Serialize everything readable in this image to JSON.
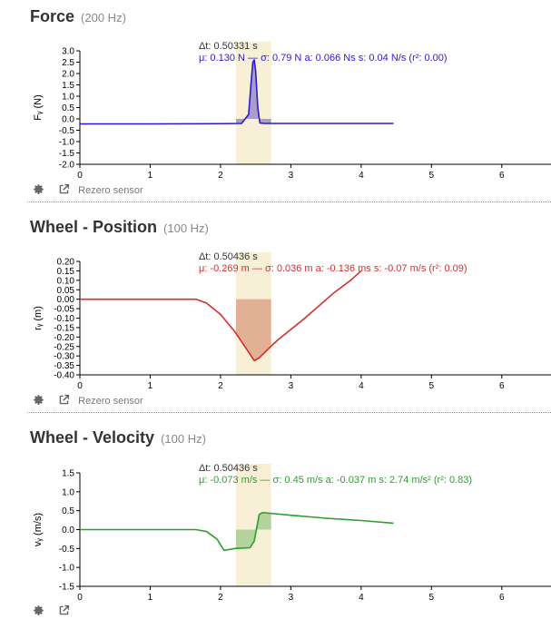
{
  "panels": [
    {
      "title": "Force",
      "rate": "(200 Hz)",
      "toolbar": {
        "settings_icon": "gear-icon",
        "popout_icon": "external-link-icon",
        "rezero_label": "Rezero sensor"
      },
      "selection": {
        "x_start": 2.22,
        "x_end": 2.72
      },
      "stats": {
        "dt": "Δt: 0.50331 s",
        "mean": "μ: 0.130 N",
        "sd": "σ: 0.79 N",
        "area": "a: 0.066 Ns",
        "slope": "s: 0.04 N/s",
        "r2": "(r²: 0.00)"
      },
      "colors": {
        "line": "#2b1bd0",
        "shade": "#9b8ec8",
        "stats": "#2b1bd0",
        "band": "#f7f0d6"
      },
      "chart_data": {
        "type": "line",
        "title": "Force",
        "xlabel": "",
        "ylabel": "Fᵧ (N)",
        "xlim": [
          0,
          6.7
        ],
        "ylim": [
          -2.0,
          3.0
        ],
        "xticks": [
          "0",
          "1",
          "2",
          "3",
          "4",
          "5",
          "6"
        ],
        "yticks": [
          "3.0",
          "2.5",
          "2.0",
          "1.5",
          "1.0",
          "0.5",
          "0.0",
          "-0.5",
          "-1.0",
          "-1.5",
          "-2.0"
        ],
        "x": [
          0,
          1,
          2,
          2.3,
          2.4,
          2.44,
          2.46,
          2.48,
          2.5,
          2.53,
          2.56,
          2.62,
          3,
          4,
          4.46
        ],
        "y": [
          -0.22,
          -0.22,
          -0.21,
          -0.2,
          0.2,
          1.8,
          2.5,
          2.6,
          2.1,
          0.5,
          -0.18,
          -0.2,
          -0.2,
          -0.2,
          -0.2
        ]
      }
    },
    {
      "title": "Wheel - Position",
      "rate": "(100 Hz)",
      "toolbar": {
        "settings_icon": "gear-icon",
        "popout_icon": "external-link-icon",
        "rezero_label": "Rezero sensor"
      },
      "selection": {
        "x_start": 2.22,
        "x_end": 2.72
      },
      "stats": {
        "dt": "Δt: 0.50436 s",
        "mean": "μ: -0.269 m",
        "sd": "σ: 0.036 m",
        "area": "a: -0.136 ms",
        "slope": "s: -0.07 m/s",
        "r2": "(r²: 0.09)"
      },
      "colors": {
        "line": "#d32f2f",
        "shade": "#dea68a",
        "stats": "#d32f2f",
        "band": "#f7f0d6"
      },
      "chart_data": {
        "type": "line",
        "title": "Wheel - Position",
        "xlabel": "",
        "ylabel": "rᵧ (m)",
        "xlim": [
          0,
          6.7
        ],
        "ylim": [
          -0.4,
          0.2
        ],
        "xticks": [
          "0",
          "1",
          "2",
          "3",
          "4",
          "5",
          "6"
        ],
        "yticks": [
          "0.20",
          "0.15",
          "0.10",
          "0.05",
          "0.00",
          "-0.05",
          "-0.10",
          "-0.15",
          "-0.20",
          "-0.25",
          "-0.30",
          "-0.35",
          "-0.40"
        ],
        "x": [
          0,
          1.65,
          1.8,
          2.0,
          2.2,
          2.4,
          2.48,
          2.55,
          2.8,
          3.2,
          3.6,
          3.85,
          4.0
        ],
        "y": [
          0,
          0,
          -0.02,
          -0.08,
          -0.17,
          -0.28,
          -0.325,
          -0.31,
          -0.22,
          -0.1,
          0.03,
          0.1,
          0.15
        ]
      }
    },
    {
      "title": "Wheel - Velocity",
      "rate": "(100 Hz)",
      "toolbar": {
        "settings_icon": "gear-icon",
        "popout_icon": "external-link-icon",
        "rezero_label": ""
      },
      "selection": {
        "x_start": 2.22,
        "x_end": 2.72
      },
      "stats": {
        "dt": "Δt: 0.50436 s",
        "mean": "μ: -0.073 m/s",
        "sd": "σ: 0.45 m/s",
        "area": "a: -0.037 m",
        "slope": "s: 2.74 m/s²",
        "r2": "(r²: 0.83)"
      },
      "colors": {
        "line": "#2e9e2e",
        "shade": "#a7cd92",
        "stats": "#2e9e2e",
        "band": "#f7f0d6"
      },
      "chart_data": {
        "type": "line",
        "title": "Wheel - Velocity",
        "xlabel": "",
        "ylabel": "vᵧ (m/s)",
        "xlim": [
          0,
          6.7
        ],
        "ylim": [
          -1.5,
          1.5
        ],
        "xticks": [
          "0",
          "1",
          "2",
          "3",
          "4",
          "5",
          "6"
        ],
        "yticks": [
          "1.5",
          "1.0",
          "0.5",
          "0.0",
          "-0.5",
          "-1.0",
          "-1.5"
        ],
        "x": [
          0,
          1.65,
          1.8,
          1.95,
          2.05,
          2.2,
          2.42,
          2.48,
          2.52,
          2.55,
          2.6,
          3.0,
          3.5,
          4.0,
          4.46
        ],
        "y": [
          0,
          0,
          -0.05,
          -0.25,
          -0.55,
          -0.5,
          -0.48,
          -0.3,
          0.1,
          0.4,
          0.45,
          0.38,
          0.3,
          0.24,
          0.17
        ]
      }
    }
  ]
}
